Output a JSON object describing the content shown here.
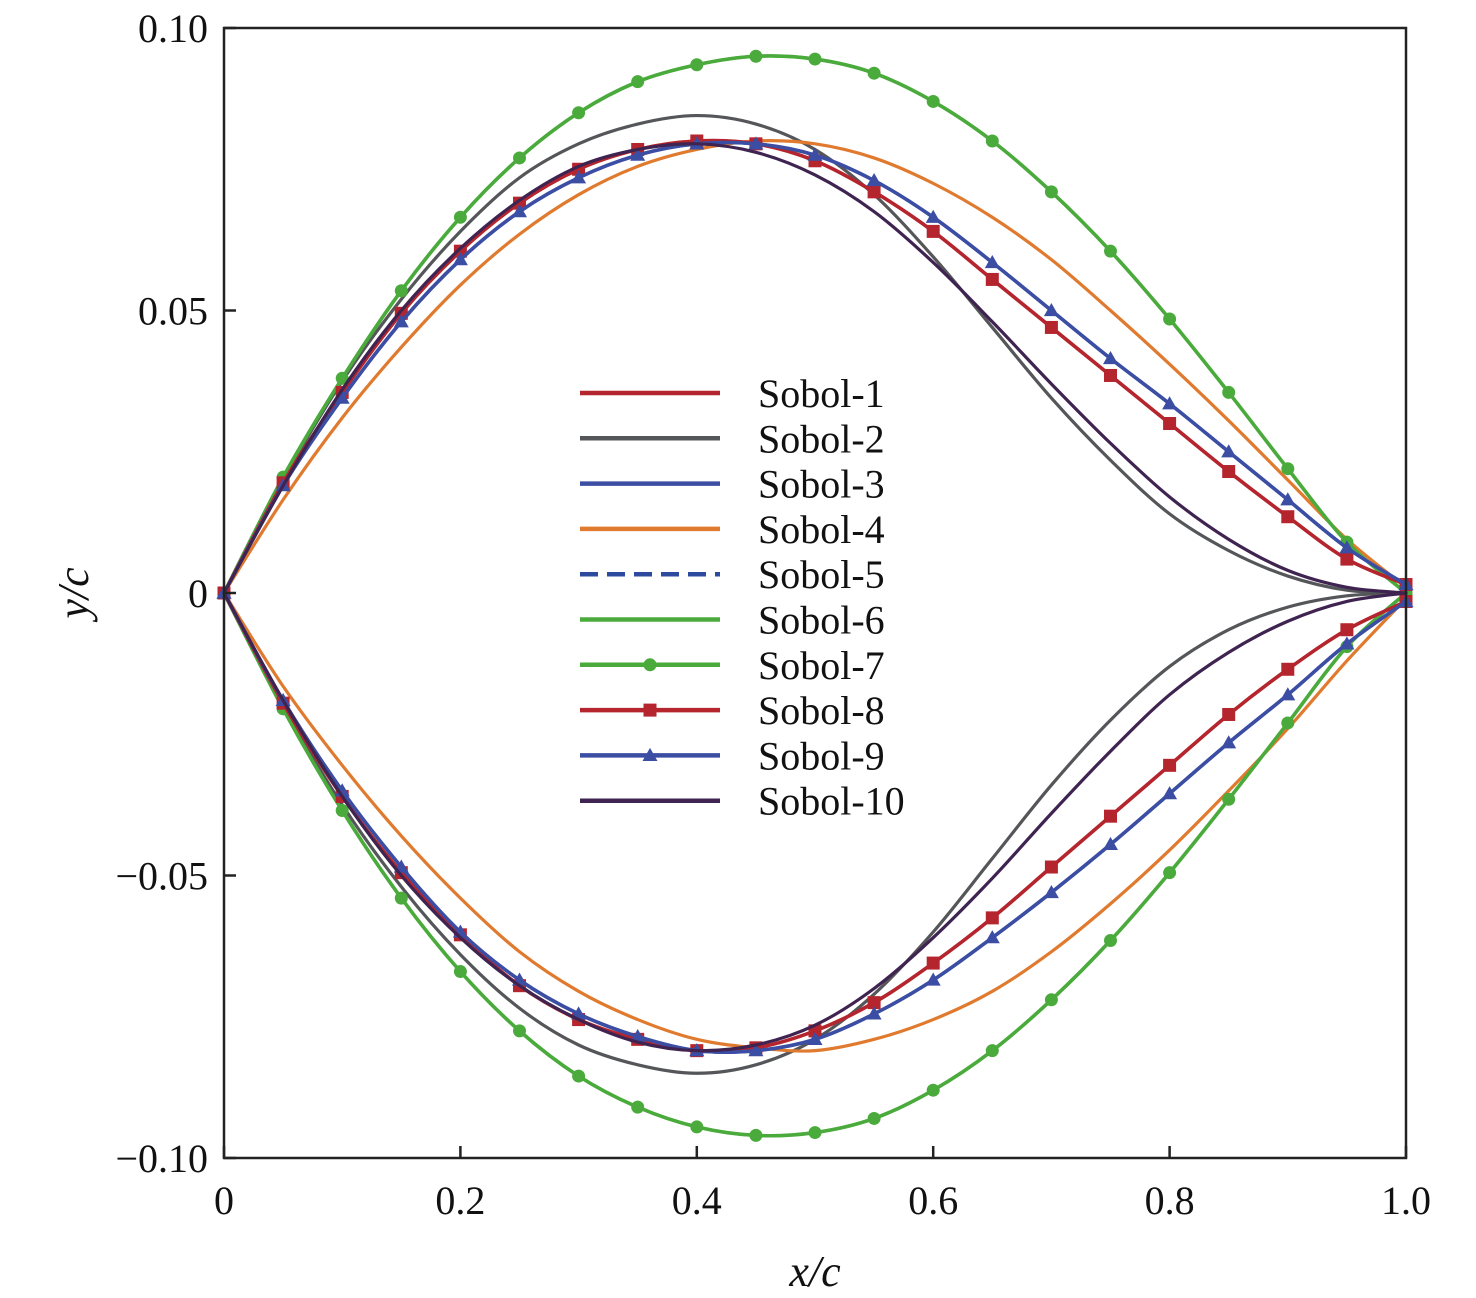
{
  "chart_data": {
    "type": "line",
    "title": "",
    "xlabel": "x/c",
    "ylabel": "y/c",
    "xlim": [
      0,
      1.0
    ],
    "ylim": [
      -0.1,
      0.1
    ],
    "xticks": [
      0,
      0.2,
      0.4,
      0.6,
      0.8,
      1.0
    ],
    "xtick_labels": [
      "0",
      "0.2",
      "0.4",
      "0.6",
      "0.8",
      "1.0"
    ],
    "yticks": [
      -0.1,
      -0.05,
      0,
      0.05,
      0.1
    ],
    "ytick_labels": [
      "−0.10",
      "−0.05",
      "0",
      "0.05",
      "0.10"
    ],
    "grid": false,
    "legend_position": "center",
    "series": [
      {
        "name": "Sobol-1",
        "color": "#b5252e",
        "style": "solid",
        "marker": "none",
        "upper": {
          "x": [
            0,
            0.05,
            0.1,
            0.15,
            0.2,
            0.25,
            0.3,
            0.35,
            0.4,
            0.45,
            0.5,
            0.55,
            0.6,
            0.65,
            0.7,
            0.75,
            0.8,
            0.85,
            0.9,
            0.95,
            1.0
          ],
          "y": [
            0,
            0.0195,
            0.0355,
            0.0495,
            0.0605,
            0.069,
            0.075,
            0.0785,
            0.08,
            0.0795,
            0.0765,
            0.071,
            0.064,
            0.0555,
            0.047,
            0.0385,
            0.03,
            0.0215,
            0.0135,
            0.006,
            0.0015
          ]
        },
        "lower": {
          "x": [
            0,
            0.05,
            0.1,
            0.15,
            0.2,
            0.25,
            0.3,
            0.35,
            0.4,
            0.45,
            0.5,
            0.55,
            0.6,
            0.65,
            0.7,
            0.75,
            0.8,
            0.85,
            0.9,
            0.95,
            1.0
          ],
          "y": [
            0,
            -0.0195,
            -0.036,
            -0.0495,
            -0.0605,
            -0.0695,
            -0.0755,
            -0.079,
            -0.081,
            -0.0805,
            -0.0775,
            -0.0725,
            -0.0655,
            -0.0575,
            -0.0485,
            -0.0395,
            -0.0305,
            -0.0215,
            -0.0135,
            -0.0065,
            -0.0015
          ]
        }
      },
      {
        "name": "Sobol-2",
        "color": "#555659",
        "style": "solid",
        "marker": "none",
        "upper": {
          "x": [
            0,
            0.05,
            0.1,
            0.15,
            0.2,
            0.25,
            0.3,
            0.35,
            0.4,
            0.45,
            0.5,
            0.55,
            0.6,
            0.65,
            0.7,
            0.75,
            0.8,
            0.85,
            0.9,
            0.95,
            1.0
          ],
          "y": [
            0,
            0.02,
            0.0375,
            0.052,
            0.064,
            0.0735,
            0.0795,
            0.083,
            0.0845,
            0.083,
            0.0785,
            0.0705,
            0.0595,
            0.047,
            0.0345,
            0.0235,
            0.014,
            0.0075,
            0.003,
            0.0005,
            0
          ]
        },
        "lower": {
          "x": [
            0,
            0.05,
            0.1,
            0.15,
            0.2,
            0.25,
            0.3,
            0.35,
            0.4,
            0.45,
            0.5,
            0.55,
            0.6,
            0.65,
            0.7,
            0.75,
            0.8,
            0.85,
            0.9,
            0.95,
            1.0
          ],
          "y": [
            0,
            -0.02,
            -0.0375,
            -0.052,
            -0.064,
            -0.0735,
            -0.08,
            -0.0835,
            -0.085,
            -0.0835,
            -0.079,
            -0.071,
            -0.06,
            -0.047,
            -0.034,
            -0.0225,
            -0.013,
            -0.0065,
            -0.0025,
            -0.0005,
            0
          ]
        }
      },
      {
        "name": "Sobol-3",
        "color": "#3b4ea3",
        "style": "solid",
        "marker": "none",
        "upper": {
          "x": [
            0,
            0.05,
            0.1,
            0.15,
            0.2,
            0.25,
            0.3,
            0.35,
            0.4,
            0.45,
            0.5,
            0.55,
            0.6,
            0.65,
            0.7,
            0.75,
            0.8,
            0.85,
            0.9,
            0.95,
            1.0
          ],
          "y": [
            0,
            0.019,
            0.0345,
            0.048,
            0.059,
            0.0675,
            0.0735,
            0.0775,
            0.0795,
            0.0795,
            0.0775,
            0.073,
            0.0665,
            0.0585,
            0.05,
            0.0415,
            0.0335,
            0.025,
            0.0165,
            0.008,
            0.0015
          ]
        },
        "lower": {
          "x": [
            0,
            0.05,
            0.1,
            0.15,
            0.2,
            0.25,
            0.3,
            0.35,
            0.4,
            0.45,
            0.5,
            0.55,
            0.6,
            0.65,
            0.7,
            0.75,
            0.8,
            0.85,
            0.9,
            0.95,
            1.0
          ],
          "y": [
            0,
            -0.019,
            -0.035,
            -0.0485,
            -0.06,
            -0.0685,
            -0.0745,
            -0.0785,
            -0.081,
            -0.081,
            -0.079,
            -0.0745,
            -0.0685,
            -0.061,
            -0.053,
            -0.0445,
            -0.0355,
            -0.0265,
            -0.018,
            -0.009,
            -0.0015
          ]
        }
      },
      {
        "name": "Sobol-4",
        "color": "#e07a2e",
        "style": "solid",
        "marker": "none",
        "upper": {
          "x": [
            0,
            0.05,
            0.1,
            0.15,
            0.2,
            0.25,
            0.3,
            0.35,
            0.4,
            0.45,
            0.5,
            0.55,
            0.6,
            0.65,
            0.7,
            0.75,
            0.8,
            0.85,
            0.9,
            0.95,
            1.0
          ],
          "y": [
            0,
            0.0165,
            0.031,
            0.0435,
            0.0545,
            0.0635,
            0.0705,
            0.0755,
            0.0785,
            0.08,
            0.0795,
            0.077,
            0.0725,
            0.0665,
            0.059,
            0.05,
            0.0405,
            0.0305,
            0.02,
            0.0095,
            0.001
          ]
        },
        "lower": {
          "x": [
            0,
            0.05,
            0.1,
            0.15,
            0.2,
            0.25,
            0.3,
            0.35,
            0.4,
            0.45,
            0.5,
            0.55,
            0.6,
            0.65,
            0.7,
            0.75,
            0.8,
            0.85,
            0.9,
            0.95,
            1.0
          ],
          "y": [
            0,
            -0.0165,
            -0.0305,
            -0.043,
            -0.054,
            -0.0635,
            -0.0705,
            -0.0755,
            -0.079,
            -0.0805,
            -0.081,
            -0.079,
            -0.0755,
            -0.0705,
            -0.0635,
            -0.055,
            -0.0455,
            -0.035,
            -0.024,
            -0.012,
            -0.001
          ]
        }
      },
      {
        "name": "Sobol-5",
        "color": "#2e4a9e",
        "style": "dashed",
        "marker": "none",
        "upper": {
          "x": [
            0,
            0.05,
            0.1,
            0.15,
            0.2,
            0.25,
            0.3,
            0.35,
            0.4,
            0.45,
            0.5,
            0.55,
            0.6,
            0.65,
            0.7,
            0.75,
            0.8,
            0.85,
            0.9,
            0.95,
            1.0
          ],
          "y": [
            0,
            0.019,
            0.0345,
            0.048,
            0.059,
            0.0675,
            0.0735,
            0.0775,
            0.0795,
            0.0795,
            0.0775,
            0.073,
            0.0665,
            0.0585,
            0.05,
            0.0415,
            0.0335,
            0.025,
            0.0165,
            0.008,
            0.0015
          ]
        },
        "lower": {
          "x": [
            0,
            0.05,
            0.1,
            0.15,
            0.2,
            0.25,
            0.3,
            0.35,
            0.4,
            0.45,
            0.5,
            0.55,
            0.6,
            0.65,
            0.7,
            0.75,
            0.8,
            0.85,
            0.9,
            0.95,
            1.0
          ],
          "y": [
            0,
            -0.019,
            -0.035,
            -0.0485,
            -0.06,
            -0.0685,
            -0.0745,
            -0.0785,
            -0.081,
            -0.081,
            -0.079,
            -0.0745,
            -0.0685,
            -0.061,
            -0.053,
            -0.0445,
            -0.0355,
            -0.0265,
            -0.018,
            -0.009,
            -0.0015
          ]
        }
      },
      {
        "name": "Sobol-6",
        "color": "#4aab3c",
        "style": "solid",
        "marker": "none",
        "upper": {
          "x": [
            0,
            0.05,
            0.1,
            0.15,
            0.2,
            0.25,
            0.3,
            0.35,
            0.4,
            0.45,
            0.5,
            0.55,
            0.6,
            0.65,
            0.7,
            0.75,
            0.8,
            0.85,
            0.9,
            0.95,
            1.0
          ],
          "y": [
            0,
            0.0205,
            0.038,
            0.0535,
            0.0665,
            0.077,
            0.085,
            0.0905,
            0.0935,
            0.095,
            0.0945,
            0.092,
            0.087,
            0.08,
            0.071,
            0.0605,
            0.0485,
            0.0355,
            0.022,
            0.009,
            0
          ]
        },
        "lower": {
          "x": [
            0,
            0.05,
            0.1,
            0.15,
            0.2,
            0.25,
            0.3,
            0.35,
            0.4,
            0.45,
            0.5,
            0.55,
            0.6,
            0.65,
            0.7,
            0.75,
            0.8,
            0.85,
            0.9,
            0.95,
            1.0
          ],
          "y": [
            0,
            -0.0205,
            -0.0385,
            -0.054,
            -0.067,
            -0.0775,
            -0.0855,
            -0.091,
            -0.0945,
            -0.096,
            -0.0955,
            -0.093,
            -0.088,
            -0.081,
            -0.072,
            -0.0615,
            -0.0495,
            -0.0365,
            -0.023,
            -0.0095,
            0
          ]
        }
      },
      {
        "name": "Sobol-7",
        "color": "#4aab3c",
        "style": "solid",
        "marker": "circle",
        "upper": {
          "x": [
            0,
            0.05,
            0.1,
            0.15,
            0.2,
            0.25,
            0.3,
            0.35,
            0.4,
            0.45,
            0.5,
            0.55,
            0.6,
            0.65,
            0.7,
            0.75,
            0.8,
            0.85,
            0.9,
            0.95,
            1.0
          ],
          "y": [
            0,
            0.0205,
            0.038,
            0.0535,
            0.0665,
            0.077,
            0.085,
            0.0905,
            0.0935,
            0.095,
            0.0945,
            0.092,
            0.087,
            0.08,
            0.071,
            0.0605,
            0.0485,
            0.0355,
            0.022,
            0.009,
            0
          ]
        },
        "lower": {
          "x": [
            0,
            0.05,
            0.1,
            0.15,
            0.2,
            0.25,
            0.3,
            0.35,
            0.4,
            0.45,
            0.5,
            0.55,
            0.6,
            0.65,
            0.7,
            0.75,
            0.8,
            0.85,
            0.9,
            0.95,
            1.0
          ],
          "y": [
            0,
            -0.0205,
            -0.0385,
            -0.054,
            -0.067,
            -0.0775,
            -0.0855,
            -0.091,
            -0.0945,
            -0.096,
            -0.0955,
            -0.093,
            -0.088,
            -0.081,
            -0.072,
            -0.0615,
            -0.0495,
            -0.0365,
            -0.023,
            -0.0095,
            0
          ]
        }
      },
      {
        "name": "Sobol-8",
        "color": "#b5252e",
        "style": "solid",
        "marker": "square",
        "upper": {
          "x": [
            0,
            0.05,
            0.1,
            0.15,
            0.2,
            0.25,
            0.3,
            0.35,
            0.4,
            0.45,
            0.5,
            0.55,
            0.6,
            0.65,
            0.7,
            0.75,
            0.8,
            0.85,
            0.9,
            0.95,
            1.0
          ],
          "y": [
            0,
            0.0195,
            0.0355,
            0.0495,
            0.0605,
            0.069,
            0.075,
            0.0785,
            0.08,
            0.0795,
            0.0765,
            0.071,
            0.064,
            0.0555,
            0.047,
            0.0385,
            0.03,
            0.0215,
            0.0135,
            0.006,
            0.0015
          ]
        },
        "lower": {
          "x": [
            0,
            0.05,
            0.1,
            0.15,
            0.2,
            0.25,
            0.3,
            0.35,
            0.4,
            0.45,
            0.5,
            0.55,
            0.6,
            0.65,
            0.7,
            0.75,
            0.8,
            0.85,
            0.9,
            0.95,
            1.0
          ],
          "y": [
            0,
            -0.0195,
            -0.036,
            -0.0495,
            -0.0605,
            -0.0695,
            -0.0755,
            -0.079,
            -0.081,
            -0.0805,
            -0.0775,
            -0.0725,
            -0.0655,
            -0.0575,
            -0.0485,
            -0.0395,
            -0.0305,
            -0.0215,
            -0.0135,
            -0.0065,
            -0.0015
          ]
        }
      },
      {
        "name": "Sobol-9",
        "color": "#3b4ea3",
        "style": "solid",
        "marker": "triangle",
        "upper": {
          "x": [
            0,
            0.05,
            0.1,
            0.15,
            0.2,
            0.25,
            0.3,
            0.35,
            0.4,
            0.45,
            0.5,
            0.55,
            0.6,
            0.65,
            0.7,
            0.75,
            0.8,
            0.85,
            0.9,
            0.95,
            1.0
          ],
          "y": [
            0,
            0.019,
            0.0345,
            0.048,
            0.059,
            0.0675,
            0.0735,
            0.0775,
            0.0795,
            0.0795,
            0.0775,
            0.073,
            0.0665,
            0.0585,
            0.05,
            0.0415,
            0.0335,
            0.025,
            0.0165,
            0.008,
            0.0015
          ]
        },
        "lower": {
          "x": [
            0,
            0.05,
            0.1,
            0.15,
            0.2,
            0.25,
            0.3,
            0.35,
            0.4,
            0.45,
            0.5,
            0.55,
            0.6,
            0.65,
            0.7,
            0.75,
            0.8,
            0.85,
            0.9,
            0.95,
            1.0
          ],
          "y": [
            0,
            -0.019,
            -0.035,
            -0.0485,
            -0.06,
            -0.0685,
            -0.0745,
            -0.0785,
            -0.081,
            -0.081,
            -0.079,
            -0.0745,
            -0.0685,
            -0.061,
            -0.053,
            -0.0445,
            -0.0355,
            -0.0265,
            -0.018,
            -0.009,
            -0.0015
          ]
        }
      },
      {
        "name": "Sobol-10",
        "color": "#3f2350",
        "style": "solid",
        "marker": "none",
        "upper": {
          "x": [
            0,
            0.05,
            0.1,
            0.15,
            0.2,
            0.25,
            0.3,
            0.35,
            0.4,
            0.45,
            0.5,
            0.55,
            0.6,
            0.65,
            0.7,
            0.75,
            0.8,
            0.85,
            0.9,
            0.95,
            1.0
          ],
          "y": [
            0,
            0.019,
            0.036,
            0.05,
            0.061,
            0.0695,
            0.0755,
            0.0785,
            0.0795,
            0.078,
            0.074,
            0.0675,
            0.0585,
            0.048,
            0.037,
            0.0265,
            0.017,
            0.0095,
            0.004,
            0.001,
            0
          ]
        },
        "lower": {
          "x": [
            0,
            0.05,
            0.1,
            0.15,
            0.2,
            0.25,
            0.3,
            0.35,
            0.4,
            0.45,
            0.5,
            0.55,
            0.6,
            0.65,
            0.7,
            0.75,
            0.8,
            0.85,
            0.9,
            0.95,
            1.0
          ],
          "y": [
            0,
            -0.019,
            -0.036,
            -0.05,
            -0.061,
            -0.0695,
            -0.0755,
            -0.0795,
            -0.081,
            -0.08,
            -0.0765,
            -0.07,
            -0.061,
            -0.0505,
            -0.039,
            -0.028,
            -0.018,
            -0.0105,
            -0.005,
            -0.0015,
            0
          ]
        }
      }
    ]
  }
}
